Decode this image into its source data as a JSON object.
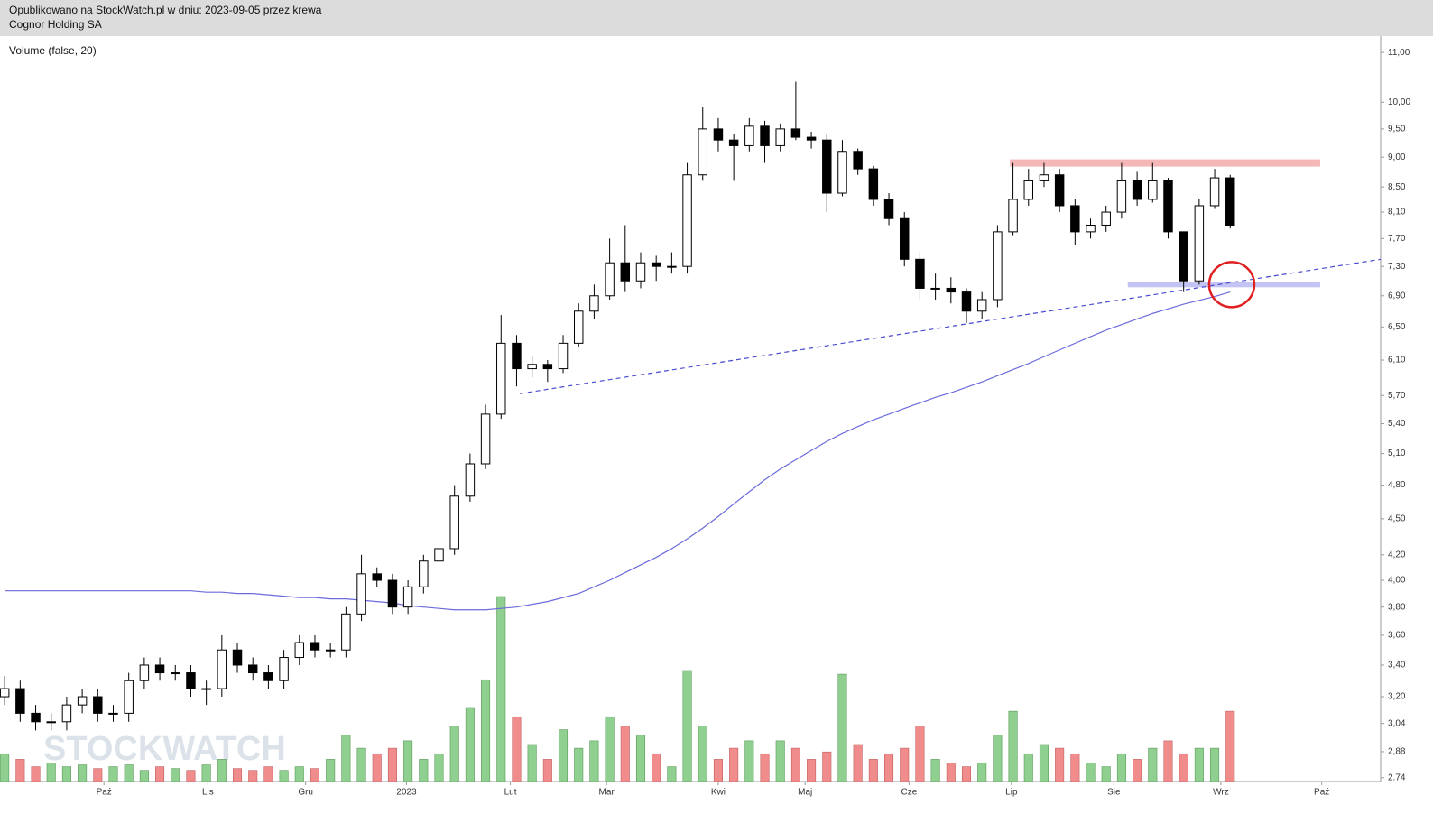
{
  "chart_data": {
    "type": "candlestick",
    "subtitle": "Opublikowano na StockWatch.pl w dniu: 2023-09-05 przez krewa",
    "title": "Cognor Holding SA",
    "volume_label": "Volume (false, 20)",
    "watermark": "STOCKWATCH",
    "log_y": true,
    "ylim": [
      2.72,
      11.35
    ],
    "yticks": [
      {
        "value": 11,
        "label": "11,00"
      },
      {
        "value": 10,
        "label": "10,00"
      },
      {
        "value": 9.5,
        "label": "9,50"
      },
      {
        "value": 9,
        "label": "9,00"
      },
      {
        "value": 8.5,
        "label": "8,50"
      },
      {
        "value": 8.1,
        "label": "8,10"
      },
      {
        "value": 7.7,
        "label": "7,70"
      },
      {
        "value": 7.3,
        "label": "7,30"
      },
      {
        "value": 6.9,
        "label": "6,90"
      },
      {
        "value": 6.5,
        "label": "6,50"
      },
      {
        "value": 6.1,
        "label": "6,10"
      },
      {
        "value": 5.7,
        "label": "5,70"
      },
      {
        "value": 5.4,
        "label": "5,40"
      },
      {
        "value": 5.1,
        "label": "5,10"
      },
      {
        "value": 4.8,
        "label": "4,80"
      },
      {
        "value": 4.5,
        "label": "4,50"
      },
      {
        "value": 4.2,
        "label": "4,20"
      },
      {
        "value": 4,
        "label": "4,00"
      },
      {
        "value": 3.8,
        "label": "3,80"
      },
      {
        "value": 3.6,
        "label": "3,60"
      },
      {
        "value": 3.4,
        "label": "3,40"
      },
      {
        "value": 3.2,
        "label": "3,20"
      },
      {
        "value": 3.04,
        "label": "3,04"
      },
      {
        "value": 2.88,
        "label": "2,88"
      },
      {
        "value": 2.74,
        "label": "2.74"
      }
    ],
    "xlim": [
      -0.3,
      88.7
    ],
    "xticks": [
      {
        "value": 6.4,
        "label": "Paź"
      },
      {
        "value": 13.1,
        "label": "Lis"
      },
      {
        "value": 19.4,
        "label": "Gru"
      },
      {
        "value": 25.9,
        "label": "2023"
      },
      {
        "value": 32.6,
        "label": "Lut"
      },
      {
        "value": 38.8,
        "label": "Mar"
      },
      {
        "value": 46.0,
        "label": "Kwi"
      },
      {
        "value": 51.6,
        "label": "Maj"
      },
      {
        "value": 58.3,
        "label": "Cze"
      },
      {
        "value": 64.9,
        "label": "Lip"
      },
      {
        "value": 71.5,
        "label": "Sie"
      },
      {
        "value": 78.4,
        "label": "Wrz"
      },
      {
        "value": 84.9,
        "label": "Paź"
      }
    ],
    "candle_color": "#000000",
    "up_color": "#8fcf8f",
    "down_color": "#f08c8c",
    "volume_lim": [
      0,
      100
    ],
    "open": [
      3.2,
      3.25,
      3.1,
      3.05,
      3.05,
      3.15,
      3.2,
      3.1,
      3.1,
      3.3,
      3.4,
      3.35,
      3.35,
      3.25,
      3.25,
      3.5,
      3.4,
      3.35,
      3.3,
      3.45,
      3.55,
      3.5,
      3.5,
      3.75,
      4.05,
      4.0,
      3.8,
      3.95,
      4.15,
      4.25,
      4.7,
      5.0,
      5.5,
      6.3,
      6.0,
      6.05,
      6.0,
      6.3,
      6.7,
      6.9,
      7.35,
      7.1,
      7.35,
      7.3,
      7.3,
      8.7,
      9.5,
      9.3,
      9.2,
      9.55,
      9.2,
      9.5,
      9.35,
      9.3,
      8.4,
      9.1,
      8.8,
      8.3,
      8.0,
      7.4,
      7.0,
      7.0,
      6.95,
      6.7,
      6.85,
      7.8,
      8.3,
      8.6,
      8.7,
      8.2,
      7.8,
      7.9,
      8.1,
      8.6,
      8.3,
      8.6,
      7.8,
      7.1,
      8.2,
      8.65
    ],
    "high": [
      3.33,
      3.3,
      3.15,
      3.1,
      3.2,
      3.25,
      3.25,
      3.15,
      3.35,
      3.45,
      3.45,
      3.4,
      3.4,
      3.3,
      3.6,
      3.55,
      3.45,
      3.4,
      3.5,
      3.6,
      3.6,
      3.55,
      3.8,
      4.2,
      4.1,
      4.05,
      4.0,
      4.2,
      4.35,
      4.8,
      5.1,
      5.6,
      6.65,
      6.4,
      6.15,
      6.1,
      6.4,
      6.8,
      7.05,
      7.7,
      7.9,
      7.5,
      7.45,
      7.5,
      8.9,
      9.9,
      9.7,
      9.4,
      9.7,
      9.65,
      9.6,
      10.4,
      9.45,
      9.4,
      9.3,
      9.15,
      8.85,
      8.4,
      8.1,
      7.5,
      7.2,
      7.15,
      7.0,
      6.95,
      7.9,
      8.9,
      8.8,
      8.9,
      8.8,
      8.3,
      8.0,
      8.2,
      8.9,
      8.75,
      8.9,
      8.65,
      7.8,
      8.3,
      8.8,
      8.7
    ],
    "low": [
      3.15,
      3.05,
      3.0,
      3.0,
      3.0,
      3.1,
      3.05,
      3.05,
      3.05,
      3.25,
      3.3,
      3.3,
      3.2,
      3.15,
      3.2,
      3.35,
      3.3,
      3.25,
      3.25,
      3.4,
      3.45,
      3.45,
      3.45,
      3.7,
      3.95,
      3.75,
      3.75,
      3.9,
      4.1,
      4.2,
      4.65,
      4.95,
      5.45,
      5.8,
      5.9,
      5.85,
      5.95,
      6.25,
      6.6,
      6.85,
      6.95,
      7.0,
      7.1,
      7.2,
      7.2,
      8.6,
      9.1,
      8.6,
      9.1,
      8.9,
      9.1,
      9.3,
      9.15,
      8.1,
      8.35,
      8.7,
      8.2,
      7.9,
      7.3,
      6.85,
      6.85,
      6.8,
      6.55,
      6.6,
      6.75,
      7.75,
      8.2,
      8.5,
      8.1,
      7.6,
      7.7,
      7.8,
      8.0,
      8.2,
      8.25,
      7.7,
      6.95,
      7.05,
      8.15,
      7.85
    ],
    "close": [
      3.25,
      3.1,
      3.05,
      3.05,
      3.15,
      3.2,
      3.1,
      3.1,
      3.3,
      3.4,
      3.35,
      3.35,
      3.25,
      3.25,
      3.5,
      3.4,
      3.35,
      3.3,
      3.45,
      3.55,
      3.5,
      3.5,
      3.75,
      4.05,
      4.0,
      3.8,
      3.95,
      4.15,
      4.25,
      4.7,
      5.0,
      5.5,
      6.3,
      6.0,
      6.05,
      6.0,
      6.3,
      6.7,
      6.9,
      7.35,
      7.1,
      7.35,
      7.3,
      7.3,
      8.7,
      9.5,
      9.3,
      9.2,
      9.55,
      9.2,
      9.5,
      9.35,
      9.3,
      8.4,
      9.1,
      8.8,
      8.3,
      8.0,
      7.4,
      7.0,
      7.0,
      6.95,
      6.7,
      6.85,
      7.8,
      8.3,
      8.6,
      8.7,
      8.2,
      7.8,
      7.9,
      8.1,
      8.6,
      8.3,
      8.6,
      7.8,
      7.1,
      8.2,
      8.65,
      7.9
    ],
    "volume": [
      15,
      12,
      8,
      10,
      8,
      9,
      7,
      8,
      9,
      6,
      8,
      7,
      6,
      9,
      12,
      7,
      6,
      8,
      6,
      8,
      7,
      12,
      25,
      18,
      15,
      18,
      22,
      12,
      15,
      30,
      40,
      55,
      100,
      35,
      20,
      12,
      28,
      18,
      22,
      35,
      30,
      25,
      15,
      8,
      60,
      30,
      12,
      18,
      22,
      15,
      22,
      18,
      12,
      16,
      58,
      20,
      12,
      15,
      18,
      30,
      12,
      10,
      8,
      10,
      25,
      38,
      15,
      20,
      18,
      15,
      10,
      8,
      15,
      12,
      18,
      22,
      15,
      18,
      18,
      38
    ],
    "moving_average": {
      "color": "#6b6bdc",
      "values": [
        3.92,
        3.92,
        3.92,
        3.92,
        3.92,
        3.92,
        3.92,
        3.92,
        3.92,
        3.92,
        3.92,
        3.92,
        3.92,
        3.91,
        3.91,
        3.9,
        3.9,
        3.89,
        3.88,
        3.87,
        3.87,
        3.86,
        3.86,
        3.85,
        3.84,
        3.83,
        3.81,
        3.8,
        3.79,
        3.78,
        3.78,
        3.78,
        3.79,
        3.8,
        3.82,
        3.84,
        3.87,
        3.9,
        3.95,
        4.0,
        4.06,
        4.12,
        4.18,
        4.25,
        4.33,
        4.42,
        4.52,
        4.63,
        4.74,
        4.85,
        4.95,
        5.04,
        5.13,
        5.22,
        5.3,
        5.37,
        5.44,
        5.5,
        5.56,
        5.62,
        5.68,
        5.73,
        5.79,
        5.85,
        5.92,
        5.99,
        6.06,
        6.14,
        6.22,
        6.3,
        6.38,
        6.46,
        6.53,
        6.6,
        6.67,
        6.73,
        6.79,
        6.84,
        6.89,
        6.95
      ]
    },
    "annotations": {
      "trend_line": {
        "color": "#4a4ad0",
        "x": [
          33.2,
          88.7
        ],
        "y": [
          5.72,
          7.4
        ]
      },
      "resistance": {
        "color": "#f4b6b6",
        "x": [
          64.8,
          84.8
        ],
        "y": 8.9
      },
      "support": {
        "color": "#c4c4f4",
        "x": [
          72.4,
          84.8
        ],
        "y": 7.05
      },
      "circle": {
        "color": "#e02020",
        "x": 79.1,
        "y": 7.05
      }
    }
  }
}
